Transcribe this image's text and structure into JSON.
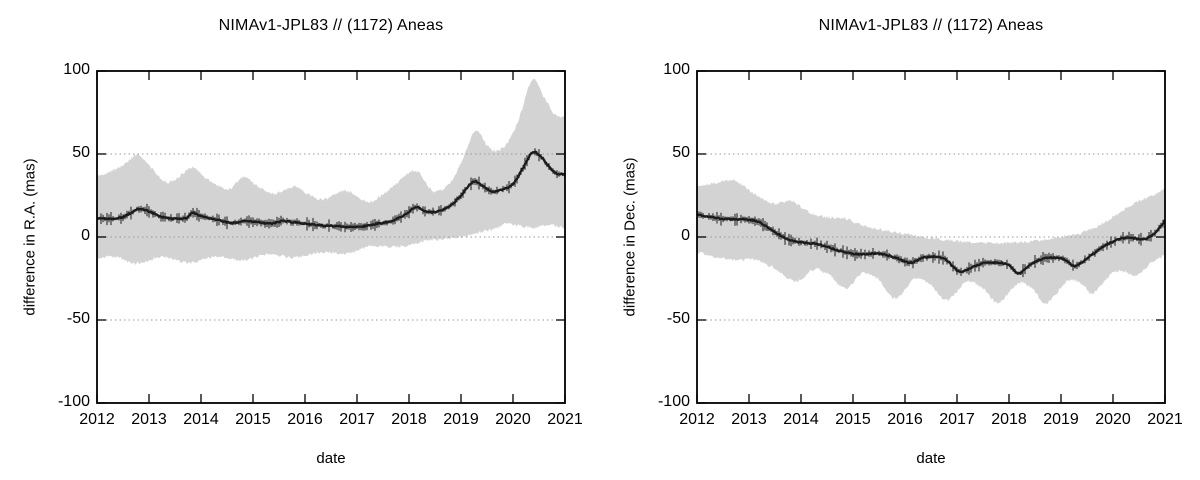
{
  "chart_data": [
    {
      "type": "line",
      "subtype": "center-line-with-error-band",
      "title": "NIMAv1-JPL83 // (1172) Aneas",
      "xlabel": "date",
      "ylabel": "difference in R.A. (mas)",
      "xlim": [
        2012,
        2021
      ],
      "ylim": [
        -100,
        100
      ],
      "xticks": [
        2012,
        2013,
        2014,
        2015,
        2016,
        2017,
        2018,
        2019,
        2020,
        2021
      ],
      "yticks": [
        -100,
        -50,
        0,
        50,
        100
      ],
      "grid_y": [
        -50,
        0,
        50
      ],
      "grid_on": true,
      "legend": "none",
      "band_color": "#d3d3d3",
      "line_color": "#1b1b1b",
      "series": {
        "center": [
          [
            2012.0,
            11.5
          ],
          [
            2012.25,
            11
          ],
          [
            2012.5,
            12
          ],
          [
            2012.77,
            16.5
          ],
          [
            2012.95,
            16
          ],
          [
            2013.25,
            12
          ],
          [
            2013.5,
            11
          ],
          [
            2013.72,
            11.5
          ],
          [
            2013.84,
            14.5
          ],
          [
            2014.0,
            12.5
          ],
          [
            2014.3,
            10.5
          ],
          [
            2014.6,
            8.5
          ],
          [
            2014.85,
            9.5
          ],
          [
            2015.1,
            9
          ],
          [
            2015.35,
            8
          ],
          [
            2015.55,
            9.5
          ],
          [
            2015.75,
            9
          ],
          [
            2016.0,
            8
          ],
          [
            2016.3,
            7
          ],
          [
            2016.6,
            6.5
          ],
          [
            2016.9,
            6
          ],
          [
            2017.15,
            6.5
          ],
          [
            2017.4,
            8
          ],
          [
            2017.7,
            10
          ],
          [
            2017.95,
            14
          ],
          [
            2018.13,
            18
          ],
          [
            2018.35,
            15
          ],
          [
            2018.55,
            15.5
          ],
          [
            2018.8,
            19
          ],
          [
            2019.0,
            25
          ],
          [
            2019.25,
            33.5
          ],
          [
            2019.45,
            30
          ],
          [
            2019.6,
            27.5
          ],
          [
            2019.8,
            28.5
          ],
          [
            2020.0,
            32
          ],
          [
            2020.2,
            42
          ],
          [
            2020.38,
            51
          ],
          [
            2020.55,
            48
          ],
          [
            2020.7,
            42
          ],
          [
            2020.85,
            38
          ],
          [
            2021.0,
            38
          ]
        ],
        "band_upper": [
          [
            2012.0,
            37
          ],
          [
            2012.3,
            40
          ],
          [
            2012.55,
            44
          ],
          [
            2012.78,
            49.5
          ],
          [
            2013.0,
            43
          ],
          [
            2013.34,
            33
          ],
          [
            2013.6,
            37
          ],
          [
            2013.84,
            42
          ],
          [
            2014.1,
            35
          ],
          [
            2014.54,
            29
          ],
          [
            2014.82,
            36
          ],
          [
            2015.1,
            30
          ],
          [
            2015.42,
            26
          ],
          [
            2015.8,
            30.5
          ],
          [
            2016.1,
            25
          ],
          [
            2016.35,
            22.5
          ],
          [
            2016.77,
            28
          ],
          [
            2017.05,
            23
          ],
          [
            2017.28,
            21.5
          ],
          [
            2017.6,
            28
          ],
          [
            2017.9,
            36
          ],
          [
            2018.13,
            40
          ],
          [
            2018.48,
            27.5
          ],
          [
            2018.8,
            33
          ],
          [
            2019.0,
            45
          ],
          [
            2019.28,
            64
          ],
          [
            2019.5,
            55
          ],
          [
            2019.68,
            52
          ],
          [
            2019.9,
            57
          ],
          [
            2020.1,
            70
          ],
          [
            2020.38,
            95
          ],
          [
            2020.6,
            84
          ],
          [
            2020.8,
            74
          ],
          [
            2021.0,
            72
          ]
        ],
        "band_lower": [
          [
            2012.0,
            -13
          ],
          [
            2012.3,
            -11.5
          ],
          [
            2012.8,
            -16
          ],
          [
            2013.2,
            -12
          ],
          [
            2013.8,
            -15.5
          ],
          [
            2014.3,
            -11.5
          ],
          [
            2014.8,
            -14
          ],
          [
            2015.3,
            -10.5
          ],
          [
            2015.8,
            -12.5
          ],
          [
            2016.3,
            -9
          ],
          [
            2016.8,
            -10
          ],
          [
            2017.3,
            -5.5
          ],
          [
            2017.8,
            -6
          ],
          [
            2018.3,
            -2.5
          ],
          [
            2018.7,
            -1
          ],
          [
            2019.0,
            0
          ],
          [
            2019.3,
            2.5
          ],
          [
            2019.6,
            4.5
          ],
          [
            2019.9,
            8
          ],
          [
            2020.1,
            7
          ],
          [
            2020.4,
            5.5
          ],
          [
            2020.7,
            7.5
          ],
          [
            2021.0,
            5
          ]
        ]
      }
    },
    {
      "type": "line",
      "subtype": "center-line-with-error-band",
      "title": "NIMAv1-JPL83 // (1172) Aneas",
      "xlabel": "date",
      "ylabel": "difference in Dec. (mas)",
      "xlim": [
        2012,
        2021
      ],
      "ylim": [
        -100,
        100
      ],
      "xticks": [
        2012,
        2013,
        2014,
        2015,
        2016,
        2017,
        2018,
        2019,
        2020,
        2021
      ],
      "yticks": [
        -100,
        -50,
        0,
        50,
        100
      ],
      "grid_y": [
        -50,
        0,
        50
      ],
      "grid_on": true,
      "legend": "none",
      "band_color": "#d3d3d3",
      "line_color": "#1b1b1b",
      "series": {
        "center": [
          [
            2012.0,
            13.5
          ],
          [
            2012.25,
            12
          ],
          [
            2012.5,
            11
          ],
          [
            2012.9,
            10.5
          ],
          [
            2013.15,
            9.5
          ],
          [
            2013.35,
            6
          ],
          [
            2013.55,
            2
          ],
          [
            2013.8,
            -2
          ],
          [
            2014.1,
            -3.5
          ],
          [
            2014.35,
            -4.5
          ],
          [
            2014.6,
            -7
          ],
          [
            2014.9,
            -9.5
          ],
          [
            2015.1,
            -10.5
          ],
          [
            2015.35,
            -10
          ],
          [
            2015.6,
            -10.5
          ],
          [
            2015.9,
            -13.5
          ],
          [
            2016.1,
            -15.5
          ],
          [
            2016.35,
            -12.5
          ],
          [
            2016.6,
            -12
          ],
          [
            2016.8,
            -14
          ],
          [
            2017.05,
            -21
          ],
          [
            2017.3,
            -18
          ],
          [
            2017.55,
            -15.5
          ],
          [
            2017.8,
            -15.5
          ],
          [
            2018.0,
            -17
          ],
          [
            2018.17,
            -22
          ],
          [
            2018.4,
            -17
          ],
          [
            2018.65,
            -13
          ],
          [
            2018.9,
            -12.5
          ],
          [
            2019.1,
            -14
          ],
          [
            2019.25,
            -17.5
          ],
          [
            2019.5,
            -13
          ],
          [
            2019.75,
            -7
          ],
          [
            2019.95,
            -3.5
          ],
          [
            2020.15,
            -1
          ],
          [
            2020.35,
            -0.5
          ],
          [
            2020.55,
            -1.5
          ],
          [
            2020.7,
            0
          ],
          [
            2020.85,
            4
          ],
          [
            2021.0,
            10
          ]
        ],
        "band_upper": [
          [
            2012.0,
            31
          ],
          [
            2012.3,
            32
          ],
          [
            2012.7,
            34
          ],
          [
            2013.1,
            26
          ],
          [
            2013.45,
            20
          ],
          [
            2013.8,
            21.5
          ],
          [
            2014.2,
            14
          ],
          [
            2014.5,
            12
          ],
          [
            2014.85,
            11
          ],
          [
            2015.1,
            8
          ],
          [
            2015.45,
            5
          ],
          [
            2015.8,
            3
          ],
          [
            2016.0,
            2
          ],
          [
            2016.3,
            0
          ],
          [
            2016.6,
            -1
          ],
          [
            2017.0,
            -2.5
          ],
          [
            2017.5,
            -3.5
          ],
          [
            2018.0,
            -3.5
          ],
          [
            2018.3,
            -3
          ],
          [
            2018.6,
            -2
          ],
          [
            2019.0,
            0
          ],
          [
            2019.35,
            2
          ],
          [
            2019.6,
            5
          ],
          [
            2019.8,
            8
          ],
          [
            2020.0,
            12
          ],
          [
            2020.2,
            16
          ],
          [
            2020.4,
            20
          ],
          [
            2020.6,
            23
          ],
          [
            2020.8,
            25.5
          ],
          [
            2021.0,
            29
          ]
        ],
        "band_lower": [
          [
            2012.0,
            -9
          ],
          [
            2012.4,
            -12.5
          ],
          [
            2012.8,
            -14
          ],
          [
            2013.1,
            -13.5
          ],
          [
            2013.5,
            -19
          ],
          [
            2013.9,
            -27
          ],
          [
            2014.25,
            -19.5
          ],
          [
            2014.55,
            -23
          ],
          [
            2014.85,
            -31
          ],
          [
            2015.2,
            -21.5
          ],
          [
            2015.5,
            -26
          ],
          [
            2015.8,
            -37
          ],
          [
            2016.2,
            -25
          ],
          [
            2016.5,
            -29
          ],
          [
            2016.8,
            -38
          ],
          [
            2017.2,
            -27
          ],
          [
            2017.5,
            -31
          ],
          [
            2017.78,
            -39.5
          ],
          [
            2018.2,
            -27.5
          ],
          [
            2018.45,
            -31
          ],
          [
            2018.7,
            -40
          ],
          [
            2019.15,
            -26
          ],
          [
            2019.4,
            -28.5
          ],
          [
            2019.6,
            -34
          ],
          [
            2020.0,
            -21.5
          ],
          [
            2020.2,
            -20.5
          ],
          [
            2020.45,
            -23.5
          ],
          [
            2020.75,
            -15
          ],
          [
            2021.0,
            -11
          ]
        ]
      }
    }
  ]
}
